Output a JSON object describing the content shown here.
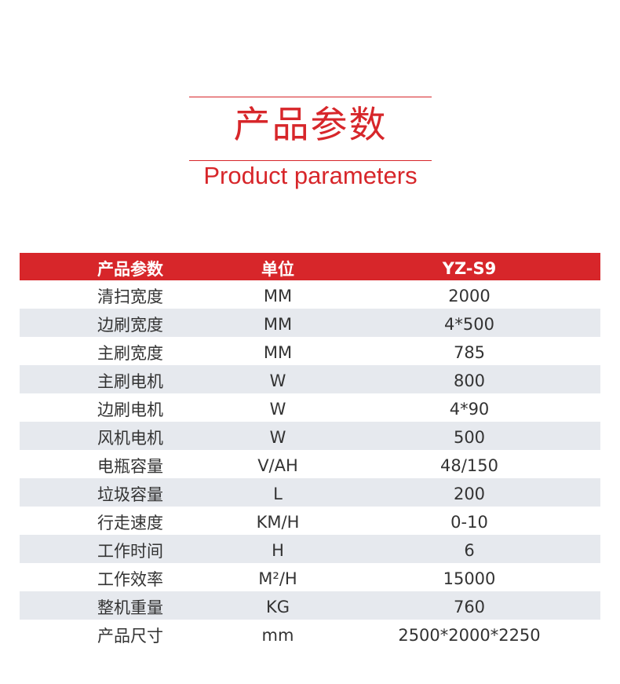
{
  "title_cn": "产品参数",
  "title_en": "Product parameters",
  "colors": {
    "accent": "#d7262a",
    "alt_row": "#e6e9ee"
  },
  "table": {
    "headers": [
      "产品参数",
      "单位",
      "YZ-S9"
    ],
    "rows": [
      [
        "清扫宽度",
        "MM",
        "2000"
      ],
      [
        "边刷宽度",
        "MM",
        "4*500"
      ],
      [
        "主刷宽度",
        "MM",
        "785"
      ],
      [
        "主刷电机",
        "W",
        "800"
      ],
      [
        "边刷电机",
        "W",
        "4*90"
      ],
      [
        "风机电机",
        "W",
        "500"
      ],
      [
        "电瓶容量",
        "V/AH",
        "48/150"
      ],
      [
        "垃圾容量",
        "L",
        "200"
      ],
      [
        "行走速度",
        "KM/H",
        "0-10"
      ],
      [
        "工作时间",
        "H",
        "6"
      ],
      [
        "工作效率",
        "M²/H",
        "15000"
      ],
      [
        "整机重量",
        "KG",
        "760"
      ],
      [
        "产品尺寸",
        "mm",
        "2500*2000*2250"
      ]
    ]
  }
}
